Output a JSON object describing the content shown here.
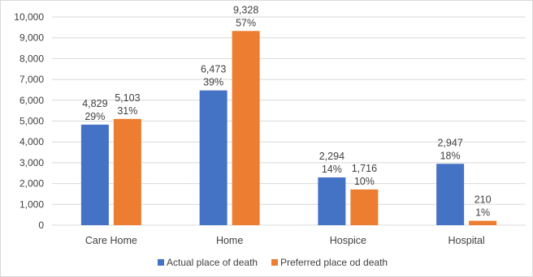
{
  "chart_data": {
    "type": "bar",
    "categories": [
      "Care Home",
      "Home",
      "Hospice",
      "Hospital"
    ],
    "series": [
      {
        "name": "Actual place of death",
        "color": "#4472c4",
        "values": [
          4829,
          6473,
          2294,
          2947
        ],
        "value_labels": [
          "4,829",
          "6,473",
          "2,294",
          "2,947"
        ],
        "pct_labels": [
          "29%",
          "39%",
          "14%",
          "18%"
        ]
      },
      {
        "name": "Preferred place od death",
        "color": "#ed7d31",
        "values": [
          5103,
          9328,
          1716,
          210
        ],
        "value_labels": [
          "5,103",
          "9,328",
          "1,716",
          "210"
        ],
        "pct_labels": [
          "31%",
          "57%",
          "10%",
          "1%"
        ]
      }
    ],
    "ylim": [
      0,
      10000
    ],
    "yticks": [
      0,
      1000,
      2000,
      3000,
      4000,
      5000,
      6000,
      7000,
      8000,
      9000,
      10000
    ],
    "ytick_labels": [
      "0",
      "1,000",
      "2,000",
      "3,000",
      "4,000",
      "5,000",
      "6,000",
      "7,000",
      "8,000",
      "9,000",
      "10,000"
    ],
    "grid": true,
    "legend_position": "bottom"
  }
}
